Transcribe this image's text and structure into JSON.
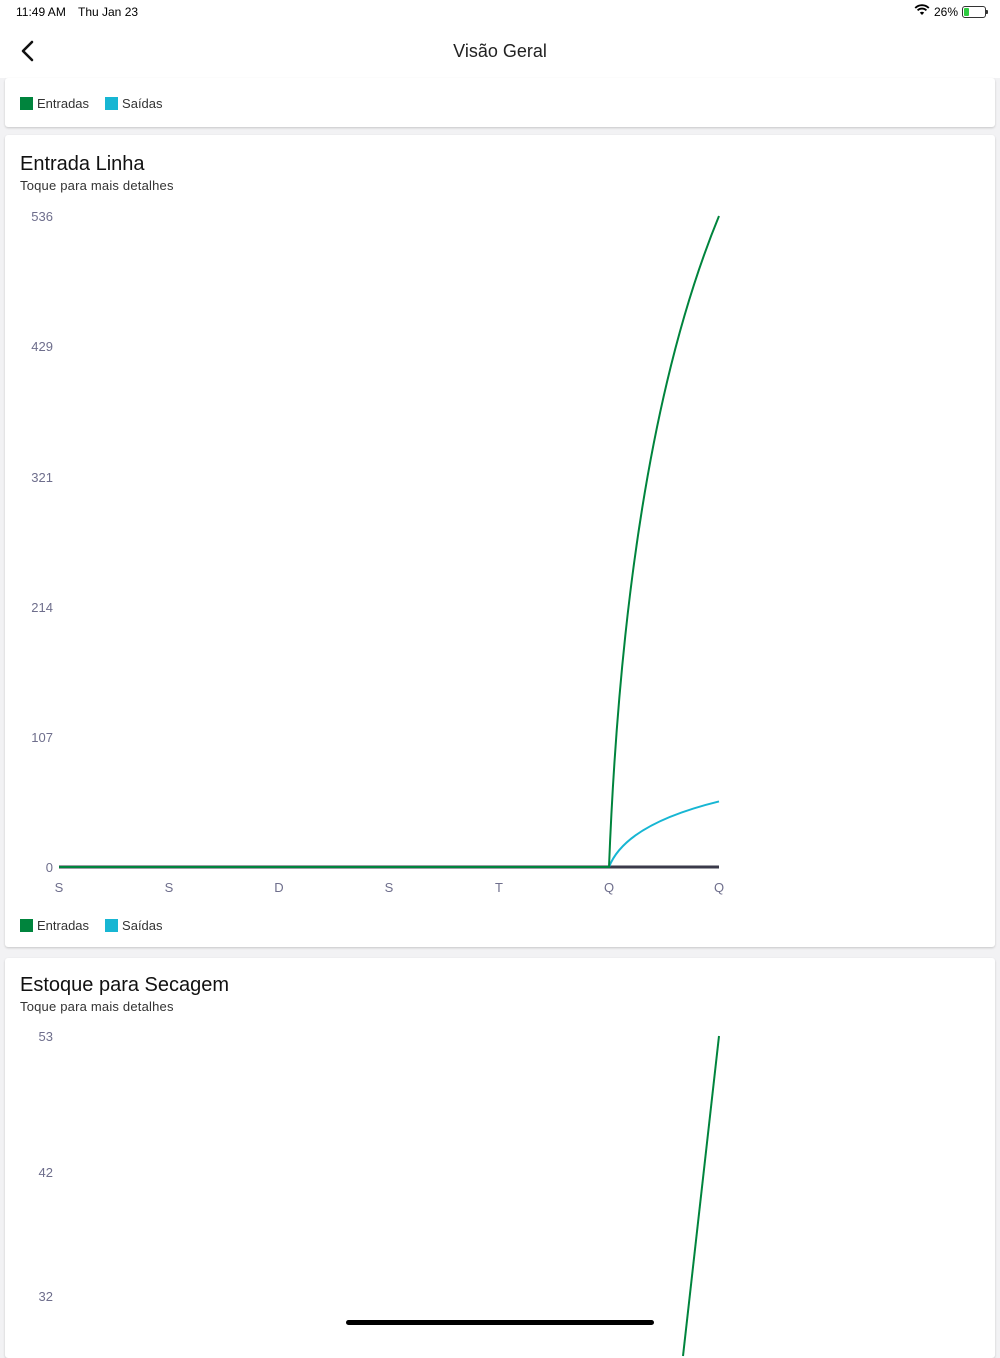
{
  "status_bar": {
    "time": "11:49 AM",
    "date": "Thu Jan 23",
    "battery": "26%"
  },
  "nav": {
    "title": "Visão Geral"
  },
  "colors": {
    "entradas": "#00843d",
    "saidas": "#17b6d3",
    "baseline": "#3a3a4a"
  },
  "top_card": {
    "legend": [
      "Entradas",
      "Saídas"
    ]
  },
  "cards": [
    {
      "title": "Entrada Linha",
      "subtitle": "Toque para mais detalhes",
      "legend": [
        "Entradas",
        "Saídas"
      ]
    },
    {
      "title": "Estoque para Secagem",
      "subtitle": "Toque para mais detalhes"
    }
  ],
  "chart_data": [
    {
      "type": "line",
      "title": "Entrada Linha",
      "categories": [
        "S",
        "S",
        "D",
        "S",
        "T",
        "Q",
        "Q"
      ],
      "y_ticks": [
        "0",
        "107",
        "214",
        "321",
        "429",
        "536"
      ],
      "ylim": [
        0,
        536
      ],
      "series": [
        {
          "name": "Entradas",
          "values": [
            0,
            0,
            0,
            0,
            0,
            0,
            536
          ]
        },
        {
          "name": "Saídas",
          "values": [
            0,
            0,
            0,
            0,
            0,
            0,
            54
          ]
        }
      ],
      "legend": "bottom-left",
      "grid": false
    },
    {
      "type": "line",
      "title": "Estoque para Secagem",
      "y_ticks": [
        "32",
        "42",
        "53"
      ],
      "series": [
        {
          "name": "Entradas",
          "values": [
            53
          ]
        }
      ],
      "grid": false
    }
  ]
}
